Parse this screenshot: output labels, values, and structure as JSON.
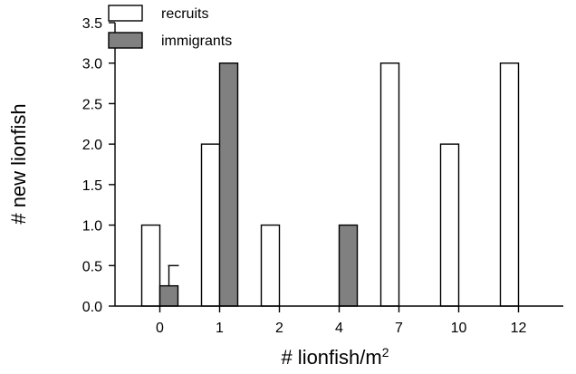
{
  "chart_data": {
    "type": "bar",
    "categories": [
      "0",
      "1",
      "2",
      "4",
      "7",
      "10",
      "12"
    ],
    "series": [
      {
        "name": "recruits",
        "values": [
          1,
          2,
          1,
          0,
          3,
          2,
          3
        ],
        "color": "#ffffff"
      },
      {
        "name": "immigrants",
        "values": [
          0.25,
          3,
          0,
          1,
          0,
          0,
          0
        ],
        "color": "#808080",
        "error_plus": [
          0.25,
          null,
          null,
          null,
          null,
          null,
          null
        ]
      }
    ],
    "xlabel": "# lionfish/m",
    "xlabel_superscript": "2",
    "ylabel": "# new lionfish",
    "ylim": [
      0,
      3.5
    ],
    "yticks": [
      "0.0",
      "0.5",
      "1.0",
      "1.5",
      "2.0",
      "2.5",
      "3.0",
      "3.5"
    ],
    "grid": false,
    "legend_position": "top-left"
  }
}
